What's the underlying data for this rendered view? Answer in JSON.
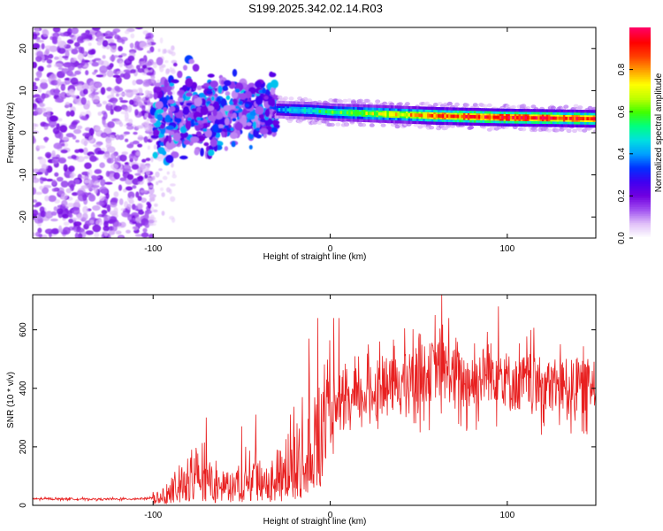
{
  "title": "S199.2025.342.02.14.R03",
  "chart_data": [
    {
      "type": "heatmap",
      "name": "spectrogram",
      "xlabel": "Height of straight line (km)",
      "ylabel": "Frequency (Hz)",
      "xlim": [
        -168,
        150
      ],
      "ylim": [
        -25,
        25
      ],
      "xticks": [
        -100,
        0,
        100
      ],
      "yticks": [
        -20,
        -10,
        0,
        10,
        20
      ],
      "xtick_labels": [
        "-100",
        "0",
        "100"
      ],
      "ytick_labels": [
        "-20",
        "-10",
        "0",
        "10",
        "20"
      ],
      "colorbar": {
        "label": "Normalized spectral amplitude",
        "range": [
          0,
          1
        ],
        "ticks": [
          0.0,
          0.2,
          0.4,
          0.6,
          0.8
        ],
        "tick_labels": [
          "0.0",
          "0.2",
          "0.4",
          "0.6",
          "0.8"
        ],
        "colormap": [
          "#ffffff",
          "#e0c0f8",
          "#a050f0",
          "#7000e0",
          "#4000f0",
          "#0030ff",
          "#00a0ff",
          "#00e0e0",
          "#00ff80",
          "#40ff00",
          "#c0ff00",
          "#ffff00",
          "#ffa000",
          "#ff4000",
          "#ff0000",
          "#ff0060"
        ]
      },
      "ridge": {
        "x": [
          -30,
          -10,
          0,
          20,
          40,
          60,
          80,
          100,
          120,
          150
        ],
        "y": [
          5.5,
          5.2,
          4.9,
          4.6,
          4.3,
          4.0,
          3.8,
          3.6,
          3.5,
          3.3
        ],
        "amplitude": [
          0.4,
          0.5,
          0.55,
          0.65,
          0.72,
          0.85,
          0.9,
          0.95,
          0.93,
          0.85
        ]
      },
      "noise_region": {
        "x_range": [
          -168,
          -100
        ],
        "y_range": [
          -25,
          25
        ],
        "amplitude": [
          0.05,
          0.2
        ]
      },
      "transition_region": {
        "x_range": [
          -100,
          -30
        ],
        "y_range": [
          -6,
          14
        ],
        "amplitude": [
          0.1,
          0.45
        ]
      }
    },
    {
      "type": "line",
      "name": "snr",
      "xlabel": "Height of straight line (km)",
      "ylabel": "SNR (10 * v/v)",
      "xlim": [
        -168,
        150
      ],
      "ylim": [
        0,
        720
      ],
      "xticks": [
        -100,
        0,
        100
      ],
      "yticks": [
        0,
        200,
        400,
        600
      ],
      "xtick_labels": [
        "-100",
        "0",
        "100"
      ],
      "ytick_labels": [
        "0",
        "200",
        "400",
        "600"
      ],
      "color": "#e82020",
      "series": [
        {
          "name": "SNR",
          "x": [
            -168,
            -150,
            -130,
            -110,
            -100,
            -95,
            -90,
            -85,
            -80,
            -75,
            -70,
            -65,
            -60,
            -55,
            -50,
            -45,
            -40,
            -35,
            -30,
            -25,
            -20,
            -15,
            -10,
            -5,
            0,
            5,
            10,
            15,
            20,
            25,
            30,
            35,
            40,
            45,
            50,
            55,
            60,
            65,
            70,
            75,
            80,
            85,
            90,
            95,
            100,
            105,
            110,
            115,
            120,
            125,
            130,
            135,
            140,
            145,
            150
          ],
          "y": [
            22,
            22,
            21,
            22,
            25,
            40,
            70,
            100,
            120,
            130,
            110,
            90,
            80,
            85,
            100,
            120,
            110,
            95,
            110,
            160,
            200,
            240,
            270,
            280,
            300,
            320,
            340,
            360,
            380,
            390,
            400,
            410,
            420,
            430,
            450,
            450,
            470,
            460,
            440,
            430,
            420,
            440,
            460,
            450,
            430,
            410,
            420,
            420,
            410,
            400,
            410,
            410,
            400,
            410,
            410
          ]
        }
      ],
      "peaks": {
        "x": [
          -70,
          -50,
          -42,
          -12,
          -7,
          2,
          5,
          28,
          50,
          63,
          67,
          95,
          126,
          139
        ],
        "y": [
          300,
          270,
          310,
          570,
          640,
          640,
          640,
          560,
          570,
          720,
          640,
          680,
          470,
          500
        ]
      }
    }
  ]
}
